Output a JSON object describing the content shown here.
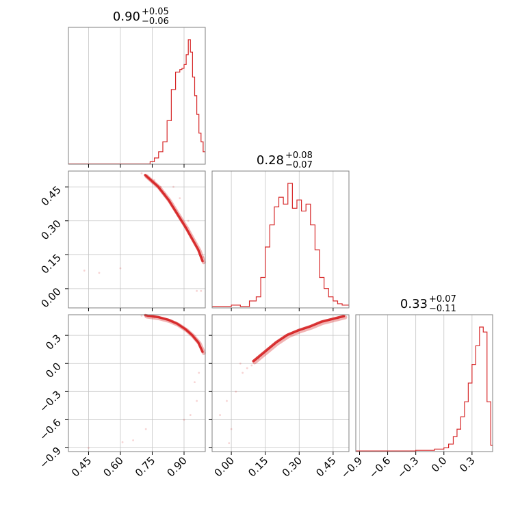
{
  "chart_data": {
    "type": "corner",
    "color": "#d62728",
    "parameters": [
      {
        "index": 0,
        "title": {
          "median": "0.90",
          "plus": "+0.05",
          "minus": "−0.06"
        },
        "range": [
          0.355,
          1.0
        ],
        "ticks": [
          0.45,
          0.6,
          0.75,
          0.9
        ],
        "tick_labels": [
          "0.45",
          "0.60",
          "0.75",
          "0.90"
        ]
      },
      {
        "index": 1,
        "title": {
          "median": "0.28",
          "plus": "+0.08",
          "minus": "−0.07"
        },
        "range": [
          -0.085,
          0.52
        ],
        "ticks": [
          0.0,
          0.15,
          0.3,
          0.45
        ],
        "tick_labels": [
          "0.00",
          "0.15",
          "0.30",
          "0.45"
        ]
      },
      {
        "index": 2,
        "title": {
          "median": "0.33",
          "plus": "+0.07",
          "minus": "−0.11"
        },
        "range": [
          -0.94,
          0.52
        ],
        "ticks": [
          -0.9,
          -0.6,
          -0.3,
          0.0,
          0.3
        ],
        "tick_labels": [
          "−0.9",
          "−0.6",
          "−0.3",
          "0.0",
          "0.3"
        ]
      }
    ],
    "histograms": [
      {
        "param": 0,
        "bin_edges": [
          0.355,
          0.74,
          0.76,
          0.78,
          0.8,
          0.82,
          0.84,
          0.86,
          0.88,
          0.89,
          0.9,
          0.91,
          0.92,
          0.93,
          0.94,
          0.95,
          0.96,
          0.97,
          0.98,
          0.99,
          1.0
        ],
        "counts": [
          0.2,
          2,
          5,
          10,
          18,
          35,
          60,
          74,
          76,
          77,
          80,
          88,
          100,
          90,
          70,
          55,
          40,
          25,
          18,
          10
        ]
      },
      {
        "param": 1,
        "bin_edges": [
          -0.085,
          0.0,
          0.04,
          0.08,
          0.11,
          0.13,
          0.15,
          0.17,
          0.19,
          0.21,
          0.23,
          0.25,
          0.27,
          0.29,
          0.31,
          0.33,
          0.35,
          0.37,
          0.39,
          0.41,
          0.43,
          0.45,
          0.47,
          0.49,
          0.52
        ],
        "counts": [
          1,
          2,
          1,
          5,
          8,
          22,
          44,
          60,
          73,
          80,
          75,
          90,
          72,
          78,
          70,
          75,
          60,
          42,
          22,
          14,
          8,
          5,
          3,
          2
        ]
      },
      {
        "param": 2,
        "bin_edges": [
          -0.94,
          -0.3,
          -0.2,
          -0.1,
          0.0,
          0.05,
          0.1,
          0.14,
          0.18,
          0.22,
          0.26,
          0.3,
          0.34,
          0.38,
          0.42,
          0.46,
          0.5,
          0.52
        ],
        "counts": [
          0.5,
          1,
          1,
          2,
          3,
          6,
          12,
          18,
          28,
          40,
          55,
          70,
          85,
          100,
          96,
          40,
          5
        ]
      }
    ],
    "pairs": [
      {
        "x_param": 0,
        "y_param": 1,
        "ridge": [
          [
            0.72,
            0.5
          ],
          [
            0.78,
            0.45
          ],
          [
            0.83,
            0.39
          ],
          [
            0.87,
            0.33
          ],
          [
            0.91,
            0.27
          ],
          [
            0.94,
            0.22
          ],
          [
            0.97,
            0.17
          ],
          [
            0.99,
            0.12
          ]
        ],
        "scatter": [
          [
            0.7,
            0.51
          ],
          [
            0.73,
            0.49
          ],
          [
            0.75,
            0.47
          ],
          [
            0.77,
            0.46
          ],
          [
            0.79,
            0.45
          ],
          [
            0.81,
            0.42
          ],
          [
            0.76,
            0.48
          ],
          [
            0.85,
            0.45
          ],
          [
            0.88,
            0.4
          ],
          [
            0.92,
            0.3
          ],
          [
            0.96,
            -0.01
          ],
          [
            0.98,
            -0.01
          ],
          [
            0.43,
            0.08
          ],
          [
            0.6,
            0.09
          ],
          [
            0.5,
            0.07
          ],
          [
            0.99,
            0.14
          ]
        ]
      },
      {
        "x_param": 0,
        "y_param": 2,
        "ridge": [
          [
            0.72,
            0.51
          ],
          [
            0.78,
            0.49
          ],
          [
            0.83,
            0.46
          ],
          [
            0.87,
            0.42
          ],
          [
            0.91,
            0.36
          ],
          [
            0.94,
            0.3
          ],
          [
            0.97,
            0.22
          ],
          [
            0.99,
            0.12
          ]
        ],
        "scatter": [
          [
            0.7,
            0.51
          ],
          [
            0.73,
            0.5
          ],
          [
            0.76,
            0.49
          ],
          [
            0.8,
            0.48
          ],
          [
            0.86,
            0.44
          ],
          [
            0.95,
            -0.2
          ],
          [
            0.96,
            -0.4
          ],
          [
            0.97,
            -0.1
          ],
          [
            0.93,
            -0.55
          ],
          [
            0.66,
            -0.82
          ],
          [
            0.61,
            -0.84
          ],
          [
            0.45,
            -0.9
          ],
          [
            0.72,
            -0.7
          ],
          [
            0.9,
            -0.6
          ]
        ]
      },
      {
        "x_param": 1,
        "y_param": 2,
        "ridge": [
          [
            0.1,
            0.02
          ],
          [
            0.15,
            0.12
          ],
          [
            0.2,
            0.22
          ],
          [
            0.25,
            0.3
          ],
          [
            0.3,
            0.35
          ],
          [
            0.35,
            0.39
          ],
          [
            0.4,
            0.44
          ],
          [
            0.45,
            0.47
          ],
          [
            0.5,
            0.5
          ]
        ],
        "scatter": [
          [
            0.07,
            -0.05
          ],
          [
            0.05,
            -0.1
          ],
          [
            0.02,
            -0.3
          ],
          [
            -0.02,
            -0.4
          ],
          [
            -0.05,
            -0.55
          ],
          [
            0.09,
            -0.02
          ],
          [
            0.12,
            0.05
          ],
          [
            0.47,
            0.48
          ],
          [
            0.5,
            0.51
          ],
          [
            0.0,
            -0.7
          ],
          [
            -0.01,
            -0.85
          ],
          [
            0.04,
            0.0
          ]
        ]
      }
    ]
  }
}
